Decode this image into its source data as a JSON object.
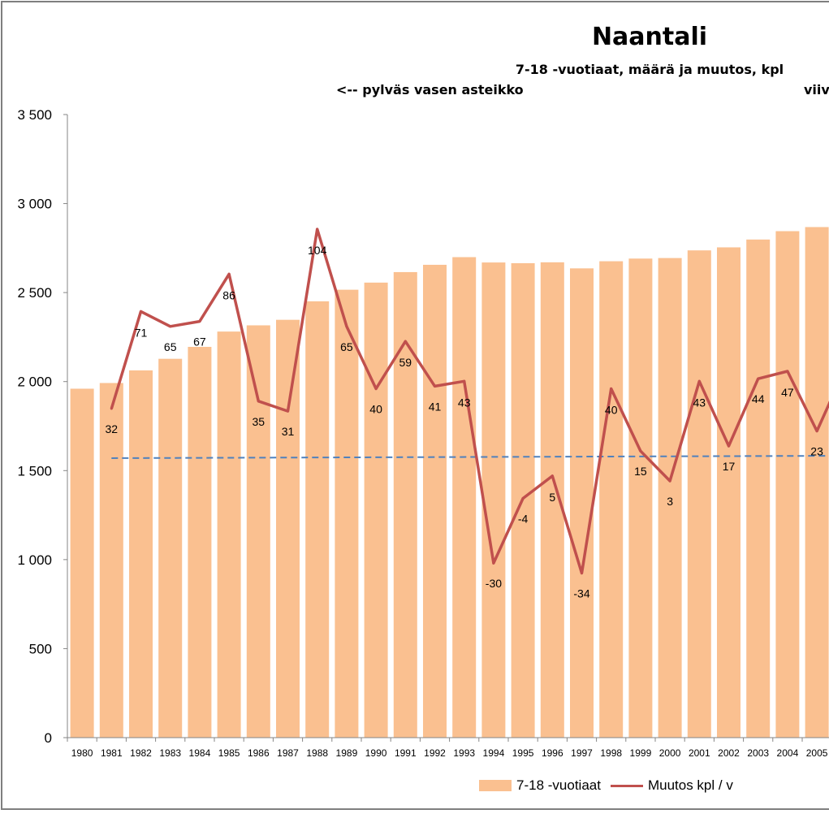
{
  "chart_data": {
    "type": "bar",
    "title": "Naantali",
    "subtitle": "7-18 -vuotiaat,  määrä ja muutos, kpl",
    "note_left": "<-- pylväs vasen asteikko",
    "note_right": "viiv",
    "categories": [
      "1980",
      "1981",
      "1982",
      "1983",
      "1984",
      "1985",
      "1986",
      "1987",
      "1988",
      "1989",
      "1990",
      "1991",
      "1992",
      "1993",
      "1994",
      "1995",
      "1996",
      "1997",
      "1998",
      "1999",
      "2000",
      "2001",
      "2002",
      "2003",
      "2004",
      "2005"
    ],
    "ylim": [
      0,
      3500
    ],
    "yticks": [
      0,
      500,
      1000,
      1500,
      2000,
      2500,
      3000,
      3500
    ],
    "ytick_labels": [
      "0",
      "500",
      "1 000",
      "1 500",
      "2 000",
      "2 500",
      "3 000",
      "3 500"
    ],
    "series": [
      {
        "name": "7-18 -vuotiaat",
        "kind": "bar",
        "axis": "left",
        "color": "#fac090",
        "values": [
          1960,
          1992,
          2063,
          2128,
          2195,
          2281,
          2316,
          2347,
          2451,
          2516,
          2556,
          2615,
          2656,
          2699,
          2669,
          2665,
          2670,
          2636,
          2676,
          2691,
          2694,
          2737,
          2754,
          2798,
          2845,
          2868
        ]
      },
      {
        "name": "Muutos kpl / v",
        "kind": "line",
        "axis": "right",
        "color": "#c0504d",
        "values": [
          null,
          32,
          71,
          65,
          67,
          86,
          35,
          31,
          104,
          65,
          40,
          59,
          41,
          43,
          -30,
          -4,
          5,
          -34,
          40,
          15,
          3,
          43,
          17,
          44,
          47,
          23
        ],
        "labels": [
          "",
          "32",
          "71",
          "65",
          "67",
          "86",
          "35",
          "31",
          "104",
          "65",
          "40",
          "59",
          "41",
          "43",
          "-30",
          "-4",
          "5",
          "-34",
          "40",
          "15",
          "3",
          "43",
          "17",
          "44",
          "47",
          "23"
        ],
        "right_axis_range": [
          -100,
          150
        ]
      }
    ],
    "trendline": {
      "color": "#4f81bd",
      "style": "dashed",
      "start": 1570,
      "end": 1583
    },
    "grid": false,
    "legend_position": "bottom-right"
  }
}
